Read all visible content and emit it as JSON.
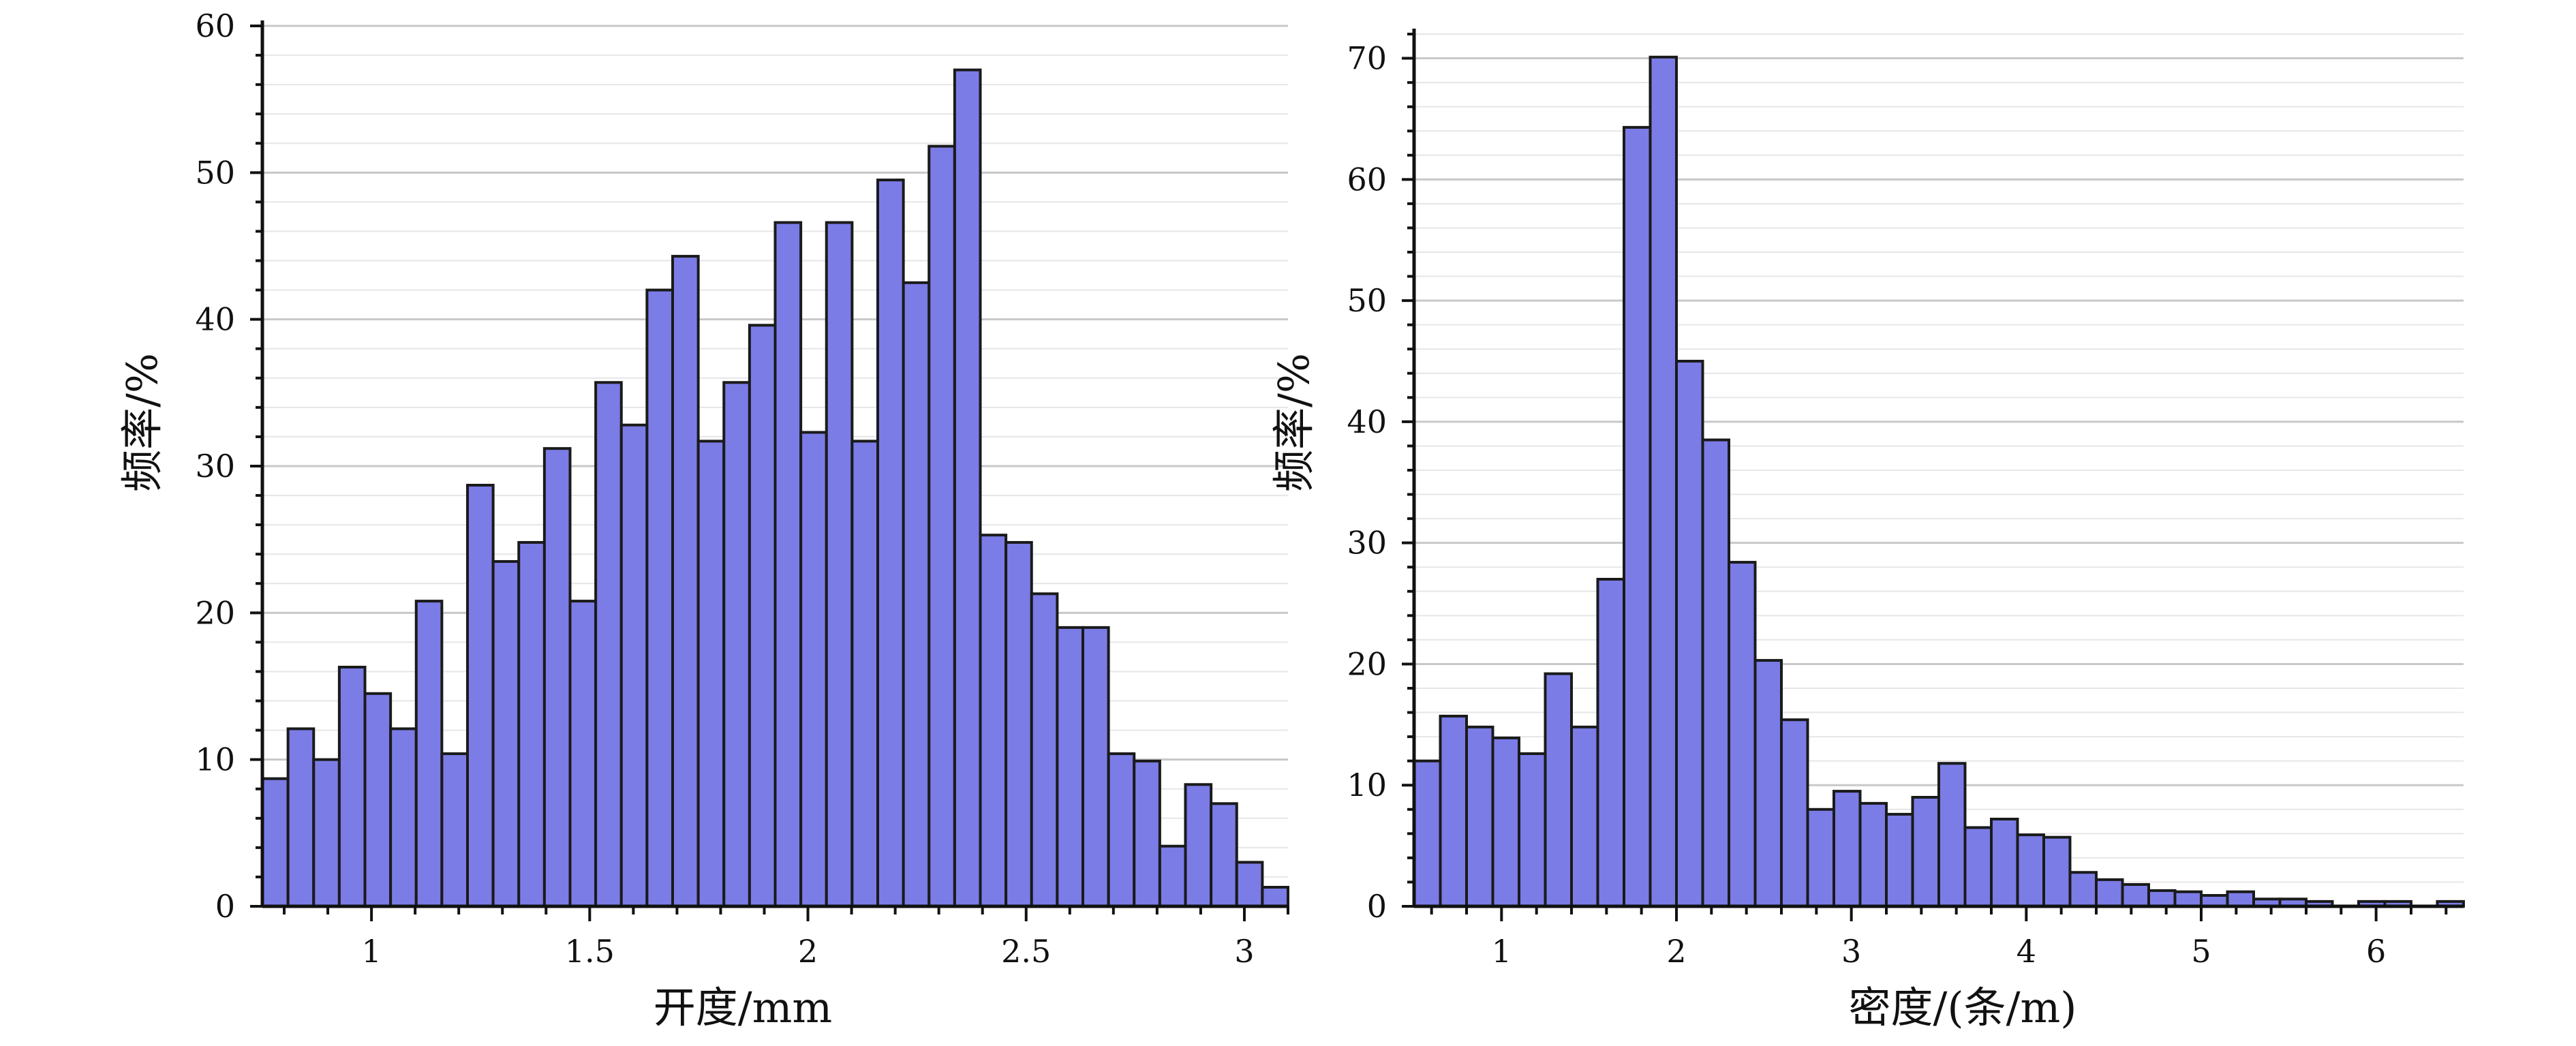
{
  "colors": {
    "bar_fill": "#7b7ce6",
    "bar_stroke": "#1a1a1a",
    "axis": "#111111",
    "grid_major": "#c8c8c8",
    "grid_minor": "#e6e6e6"
  },
  "chart_data": [
    {
      "type": "bar",
      "title": "",
      "xlabel": "开度/mm",
      "ylabel": "频率/%",
      "xlim": [
        0.75,
        3.1
      ],
      "ylim": [
        0,
        60
      ],
      "xticks": [
        1,
        1.5,
        2,
        2.5,
        3
      ],
      "yticks": [
        0,
        10,
        20,
        30,
        40,
        50,
        60
      ],
      "bin_start": 0.75,
      "bin_width": 0.05875,
      "values": [
        8.7,
        12.1,
        10,
        16.3,
        14.5,
        12.1,
        20.8,
        10.4,
        28.7,
        23.5,
        24.8,
        31.2,
        20.8,
        35.7,
        32.8,
        42,
        44.3,
        31.7,
        35.7,
        39.6,
        46.6,
        32.3,
        46.6,
        31.7,
        49.5,
        42.5,
        51.8,
        57,
        25.3,
        24.8,
        21.3,
        19,
        19,
        10.4,
        9.9,
        4.1,
        8.3,
        7,
        3,
        1.3
      ]
    },
    {
      "type": "bar",
      "title": "",
      "xlabel": "密度/(条/m)",
      "ylabel": "频率/%",
      "xlim": [
        0.5,
        6.5
      ],
      "ylim": [
        0,
        72
      ],
      "xticks": [
        1,
        2,
        3,
        4,
        5,
        6
      ],
      "yticks": [
        0,
        10,
        20,
        30,
        40,
        50,
        60,
        70
      ],
      "bin_start": 0.5,
      "bin_width": 0.15,
      "values": [
        12,
        15.7,
        14.8,
        13.9,
        12.6,
        19.2,
        14.8,
        27,
        64.3,
        70.1,
        45,
        38.5,
        28.4,
        20.3,
        15.4,
        8,
        9.5,
        8.5,
        7.6,
        9,
        11.8,
        6.5,
        7.2,
        5.9,
        5.7,
        2.8,
        2.2,
        1.8,
        1.3,
        1.2,
        0.9,
        1.2,
        0.6,
        0.6,
        0.4,
        0,
        0.4,
        0.4,
        0,
        0.4
      ]
    }
  ]
}
